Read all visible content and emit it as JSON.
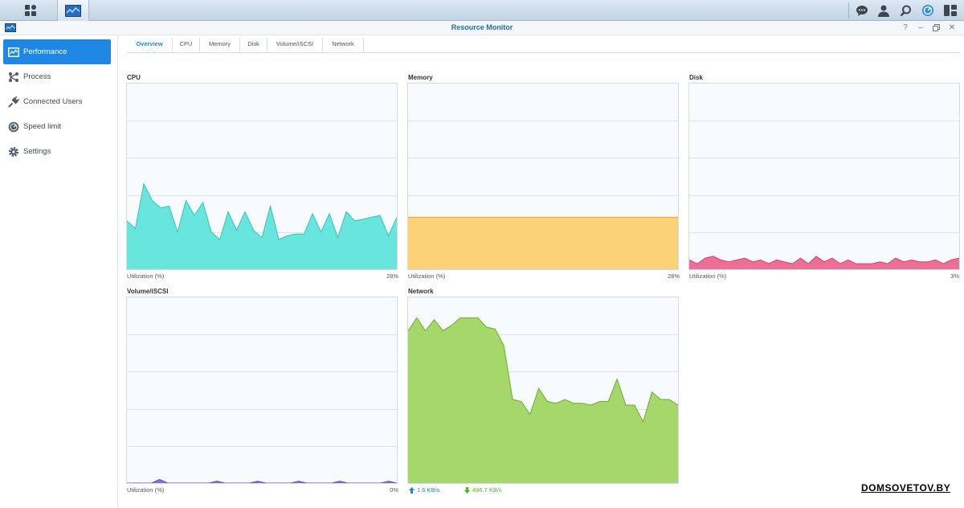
{
  "window": {
    "title": "Resource Monitor"
  },
  "sidebar": {
    "items": [
      {
        "label": "Performance",
        "icon": "performance-icon",
        "active": true
      },
      {
        "label": "Process",
        "icon": "process-icon"
      },
      {
        "label": "Connected Users",
        "icon": "plug-icon"
      },
      {
        "label": "Speed limit",
        "icon": "speedometer-icon"
      },
      {
        "label": "Settings",
        "icon": "gear-icon"
      }
    ]
  },
  "tabs": [
    {
      "label": "Overview",
      "active": true
    },
    {
      "label": "CPU"
    },
    {
      "label": "Memory"
    },
    {
      "label": "Disk"
    },
    {
      "label": "Volume/iSCSI"
    },
    {
      "label": "Network"
    }
  ],
  "panels": {
    "cpu": {
      "title": "CPU",
      "footer_label": "Utilization (%)",
      "footer_value": "28%",
      "color": "#68e6dd",
      "stroke": "#3cbfb6"
    },
    "memory": {
      "title": "Memory",
      "footer_label": "Utilization (%)",
      "footer_value": "28%",
      "color": "#fbd376",
      "stroke": "#d9a83a"
    },
    "disk": {
      "title": "Disk",
      "footer_label": "Utilization (%)",
      "footer_value": "3%",
      "color": "#ee6f95",
      "stroke": "#c9456c"
    },
    "volume": {
      "title": "Volume/iSCSI",
      "footer_label": "Utilization (%)",
      "footer_value": "0%",
      "color": "#8a6fd6",
      "stroke": "#6a4fb6"
    },
    "network": {
      "title": "Network",
      "upload": "1.6 KB/s",
      "download": "496.7 KB/s",
      "color": "#a6d76b",
      "stroke": "#6fa83a",
      "upload_color": "#1e87e5",
      "download_color": "#4cb81f"
    }
  },
  "chart_data": [
    {
      "type": "area",
      "name": "CPU",
      "ylim": [
        0,
        100
      ],
      "grid": true,
      "values": [
        26,
        22,
        46,
        37,
        33,
        34,
        20,
        37,
        29,
        36,
        20,
        16,
        31,
        21,
        31,
        21,
        17,
        34,
        16,
        18,
        19,
        19,
        30,
        20,
        30,
        17,
        31,
        26,
        27,
        28,
        29,
        18,
        28
      ]
    },
    {
      "type": "area",
      "name": "Memory",
      "ylim": [
        0,
        100
      ],
      "grid": true,
      "values": [
        28,
        28,
        28,
        28,
        28,
        28,
        28,
        28,
        28,
        28,
        28
      ]
    },
    {
      "type": "area",
      "name": "Disk",
      "ylim": [
        0,
        100
      ],
      "grid": true,
      "values": [
        5,
        3,
        6,
        7,
        5,
        4,
        5,
        6,
        4,
        5,
        3,
        5,
        4,
        3,
        6,
        3,
        7,
        4,
        6,
        3,
        5,
        3,
        3,
        3,
        4,
        3,
        6,
        4,
        5,
        4,
        4,
        5,
        3,
        5,
        6
      ]
    },
    {
      "type": "area",
      "name": "Volume/iSCSI",
      "ylim": [
        0,
        100
      ],
      "grid": true,
      "values": [
        0,
        0,
        0,
        0,
        2,
        0,
        0,
        0,
        0,
        0,
        0,
        1,
        0,
        0,
        0,
        0,
        1,
        0,
        0,
        0,
        0,
        1,
        0,
        0,
        0,
        0,
        1,
        0,
        0,
        0,
        0,
        0,
        1,
        0
      ]
    },
    {
      "type": "area",
      "name": "Network",
      "ylim": [
        0,
        100
      ],
      "grid": true,
      "values": [
        82,
        89,
        82,
        88,
        82,
        85,
        89,
        89,
        89,
        84,
        83,
        74,
        45,
        44,
        37,
        51,
        44,
        43,
        45,
        43,
        43,
        42,
        44,
        44,
        56,
        42,
        42,
        33,
        49,
        45,
        45,
        42
      ]
    }
  ]
}
